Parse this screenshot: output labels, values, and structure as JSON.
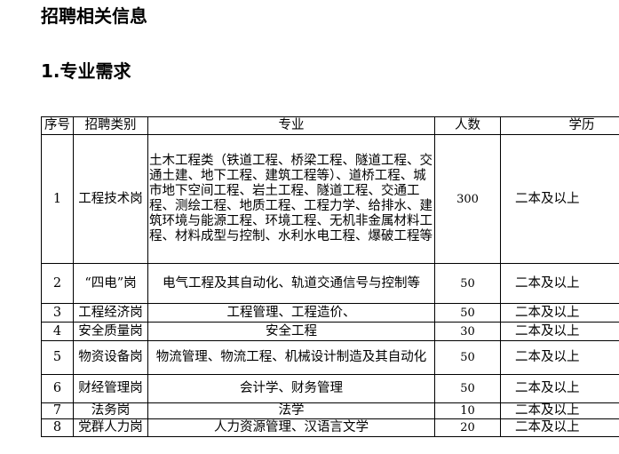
{
  "header": {
    "title": "招聘相关信息"
  },
  "section": {
    "title": "1.专业需求"
  },
  "table": {
    "header": [
      "序号",
      "招聘类别",
      "专业",
      "人数",
      "学历"
    ],
    "rows": [
      [
        1,
        "工程技术岗",
        "土木工程类（铁道工程、桥梁工程、隧道工程、交通土建、地下工程、建筑工程等）、道桥工程、城市地下空间工程、岩土工程、隧道工程、交通工程、测绘工程、地质工程、工程力学、给排水、建筑环境与能源工程、环境工程、无机非金属材料工程、材料成型与控制、水利水电工程、爆破工程等",
        300,
        "二本及以上"
      ],
      [
        2,
        "“四电”岗",
        "电气工程及其自动化、轨道交通信号与控制等",
        50,
        "二本及以上"
      ],
      [
        3,
        "工程经济岗",
        "工程管理、工程造价、",
        50,
        "二本及以上"
      ],
      [
        4,
        "安全质量岗",
        "安全工程",
        30,
        "二本及以上"
      ],
      [
        5,
        "物资设备岗",
        "物流管理、物流工程、机械设计制造及其自动化",
        50,
        "二本及以上"
      ],
      [
        6,
        "财经管理岗",
        "会计学、财务管理",
        50,
        "二本及以上"
      ],
      [
        7,
        "法务岗",
        "法学",
        10,
        "二本及以上"
      ],
      [
        8,
        "党群人力岗",
        "人力资源管理、汉语言文学",
        20,
        "二本及以上"
      ]
    ]
  }
}
